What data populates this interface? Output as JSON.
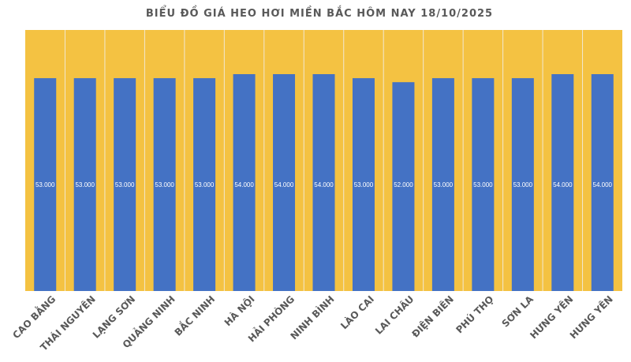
{
  "chart_data": {
    "type": "bar",
    "title": "BIỂU ĐỒ GIÁ HEO HƠI MIỀN BẮC HÔM NAY 18/10/2025",
    "categories": [
      "CAO BẰNG",
      "THÁI NGUYÊN",
      "LẠNG SƠN",
      "QUẢNG NINH",
      "BẮC NINH",
      "HÀ NỘI",
      "HẢI PHÒNG",
      "NINH BÌNH",
      "LÀO CAI",
      "LAI CHÂU",
      "ĐIỆN BIÊN",
      "PHÚ THỌ",
      "SƠN LA",
      "HƯNG YÊN",
      "HƯNG YÊN"
    ],
    "values": [
      53000,
      53000,
      53000,
      53000,
      53000,
      54000,
      54000,
      54000,
      53000,
      52000,
      53000,
      53000,
      53000,
      54000,
      54000
    ],
    "data_labels": [
      "53.000",
      "53.000",
      "53.000",
      "53.000",
      "53.000",
      "54.000",
      "54.000",
      "54.000",
      "53.000",
      "52.000",
      "53.000",
      "53.000",
      "53.000",
      "54.000",
      "54.000"
    ],
    "xlabel": "",
    "ylabel": "",
    "ylim": [
      0,
      65000
    ],
    "grid": false,
    "legend": "none",
    "colors": {
      "bar": "#4472C4",
      "plot_background": "#F4C242",
      "separator": "#F2E8D0",
      "text": "#595959"
    }
  }
}
